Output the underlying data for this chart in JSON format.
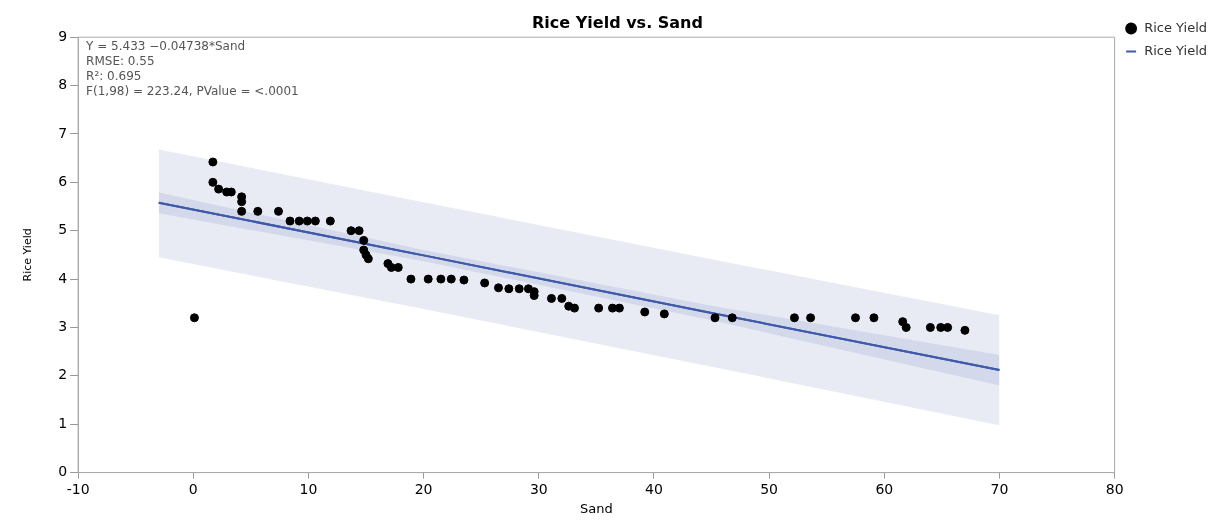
{
  "chart_data": {
    "type": "scatter",
    "title": "Rice Yield vs. Sand",
    "xlabel": "Sand",
    "ylabel": "Rice Yield",
    "annotations": [
      "Y = 5.433 −0.04738*Sand",
      "RMSE: 0.55",
      "R²: 0.695",
      "F(1,98) = 223.24, PValue = <.0001"
    ],
    "xlim": [
      -10,
      80
    ],
    "xticks": [
      -10,
      0,
      10,
      20,
      30,
      40,
      50,
      60,
      70,
      80
    ],
    "ylim": [
      0,
      9
    ],
    "yticks": [
      0,
      1,
      2,
      3,
      4,
      5,
      6,
      7,
      8,
      9
    ],
    "grid": false,
    "legend": "top right",
    "series": [
      {
        "name": "Rice Yield",
        "type": "scatter",
        "marker": "circle",
        "color": "#000000",
        "x": [
          0.1,
          1.7,
          1.7,
          2.2,
          2.9,
          3.3,
          4.2,
          4.2,
          4.2,
          5.6,
          7.4,
          8.4,
          9.2,
          9.9,
          10.6,
          11.9,
          13.7,
          14.4,
          14.8,
          14.8,
          15.0,
          15.2,
          16.9,
          17.2,
          17.8,
          18.9,
          20.4,
          21.5,
          22.4,
          23.5,
          25.3,
          26.5,
          27.4,
          28.3,
          29.1,
          29.6,
          29.6,
          31.1,
          32.0,
          32.6,
          33.1,
          35.2,
          36.4,
          37.0,
          39.2,
          40.9,
          45.3,
          46.8,
          52.2,
          53.6,
          57.5,
          59.1,
          61.6,
          61.9,
          64.0,
          64.9,
          65.5,
          67.0
        ],
        "values": [
          3.2,
          6.42,
          6.0,
          5.86,
          5.8,
          5.8,
          5.7,
          5.6,
          5.4,
          5.4,
          5.4,
          5.2,
          5.2,
          5.2,
          5.2,
          5.2,
          5.0,
          5.0,
          4.8,
          4.6,
          4.5,
          4.42,
          4.32,
          4.24,
          4.24,
          4.0,
          4.0,
          4.0,
          4.0,
          3.98,
          3.92,
          3.82,
          3.8,
          3.8,
          3.8,
          3.74,
          3.66,
          3.6,
          3.6,
          3.44,
          3.4,
          3.4,
          3.4,
          3.4,
          3.32,
          3.28,
          3.2,
          3.2,
          3.2,
          3.2,
          3.2,
          3.2,
          3.12,
          3.0,
          3.0,
          3.0,
          3.0,
          2.94
        ]
      },
      {
        "name": "Rice Yield",
        "type": "line",
        "color": "#3f5aa8",
        "x": [
          -3,
          20,
          45,
          70
        ],
        "values": [
          5.58,
          4.49,
          3.3,
          2.12
        ],
        "lower": [
          5.36,
          4.37,
          3.15,
          1.8
        ],
        "upper": [
          5.79,
          4.6,
          3.45,
          2.43
        ]
      },
      {
        "type": "line",
        "color": "#3f5aa8",
        "x": [
          -3,
          20,
          45,
          70
        ],
        "values": [
          5.58,
          4.49,
          3.3,
          2.12
        ],
        "lower": [
          4.45,
          3.38,
          2.19,
          0.98
        ],
        "upper": [
          6.68,
          5.59,
          4.41,
          3.25
        ]
      }
    ]
  }
}
